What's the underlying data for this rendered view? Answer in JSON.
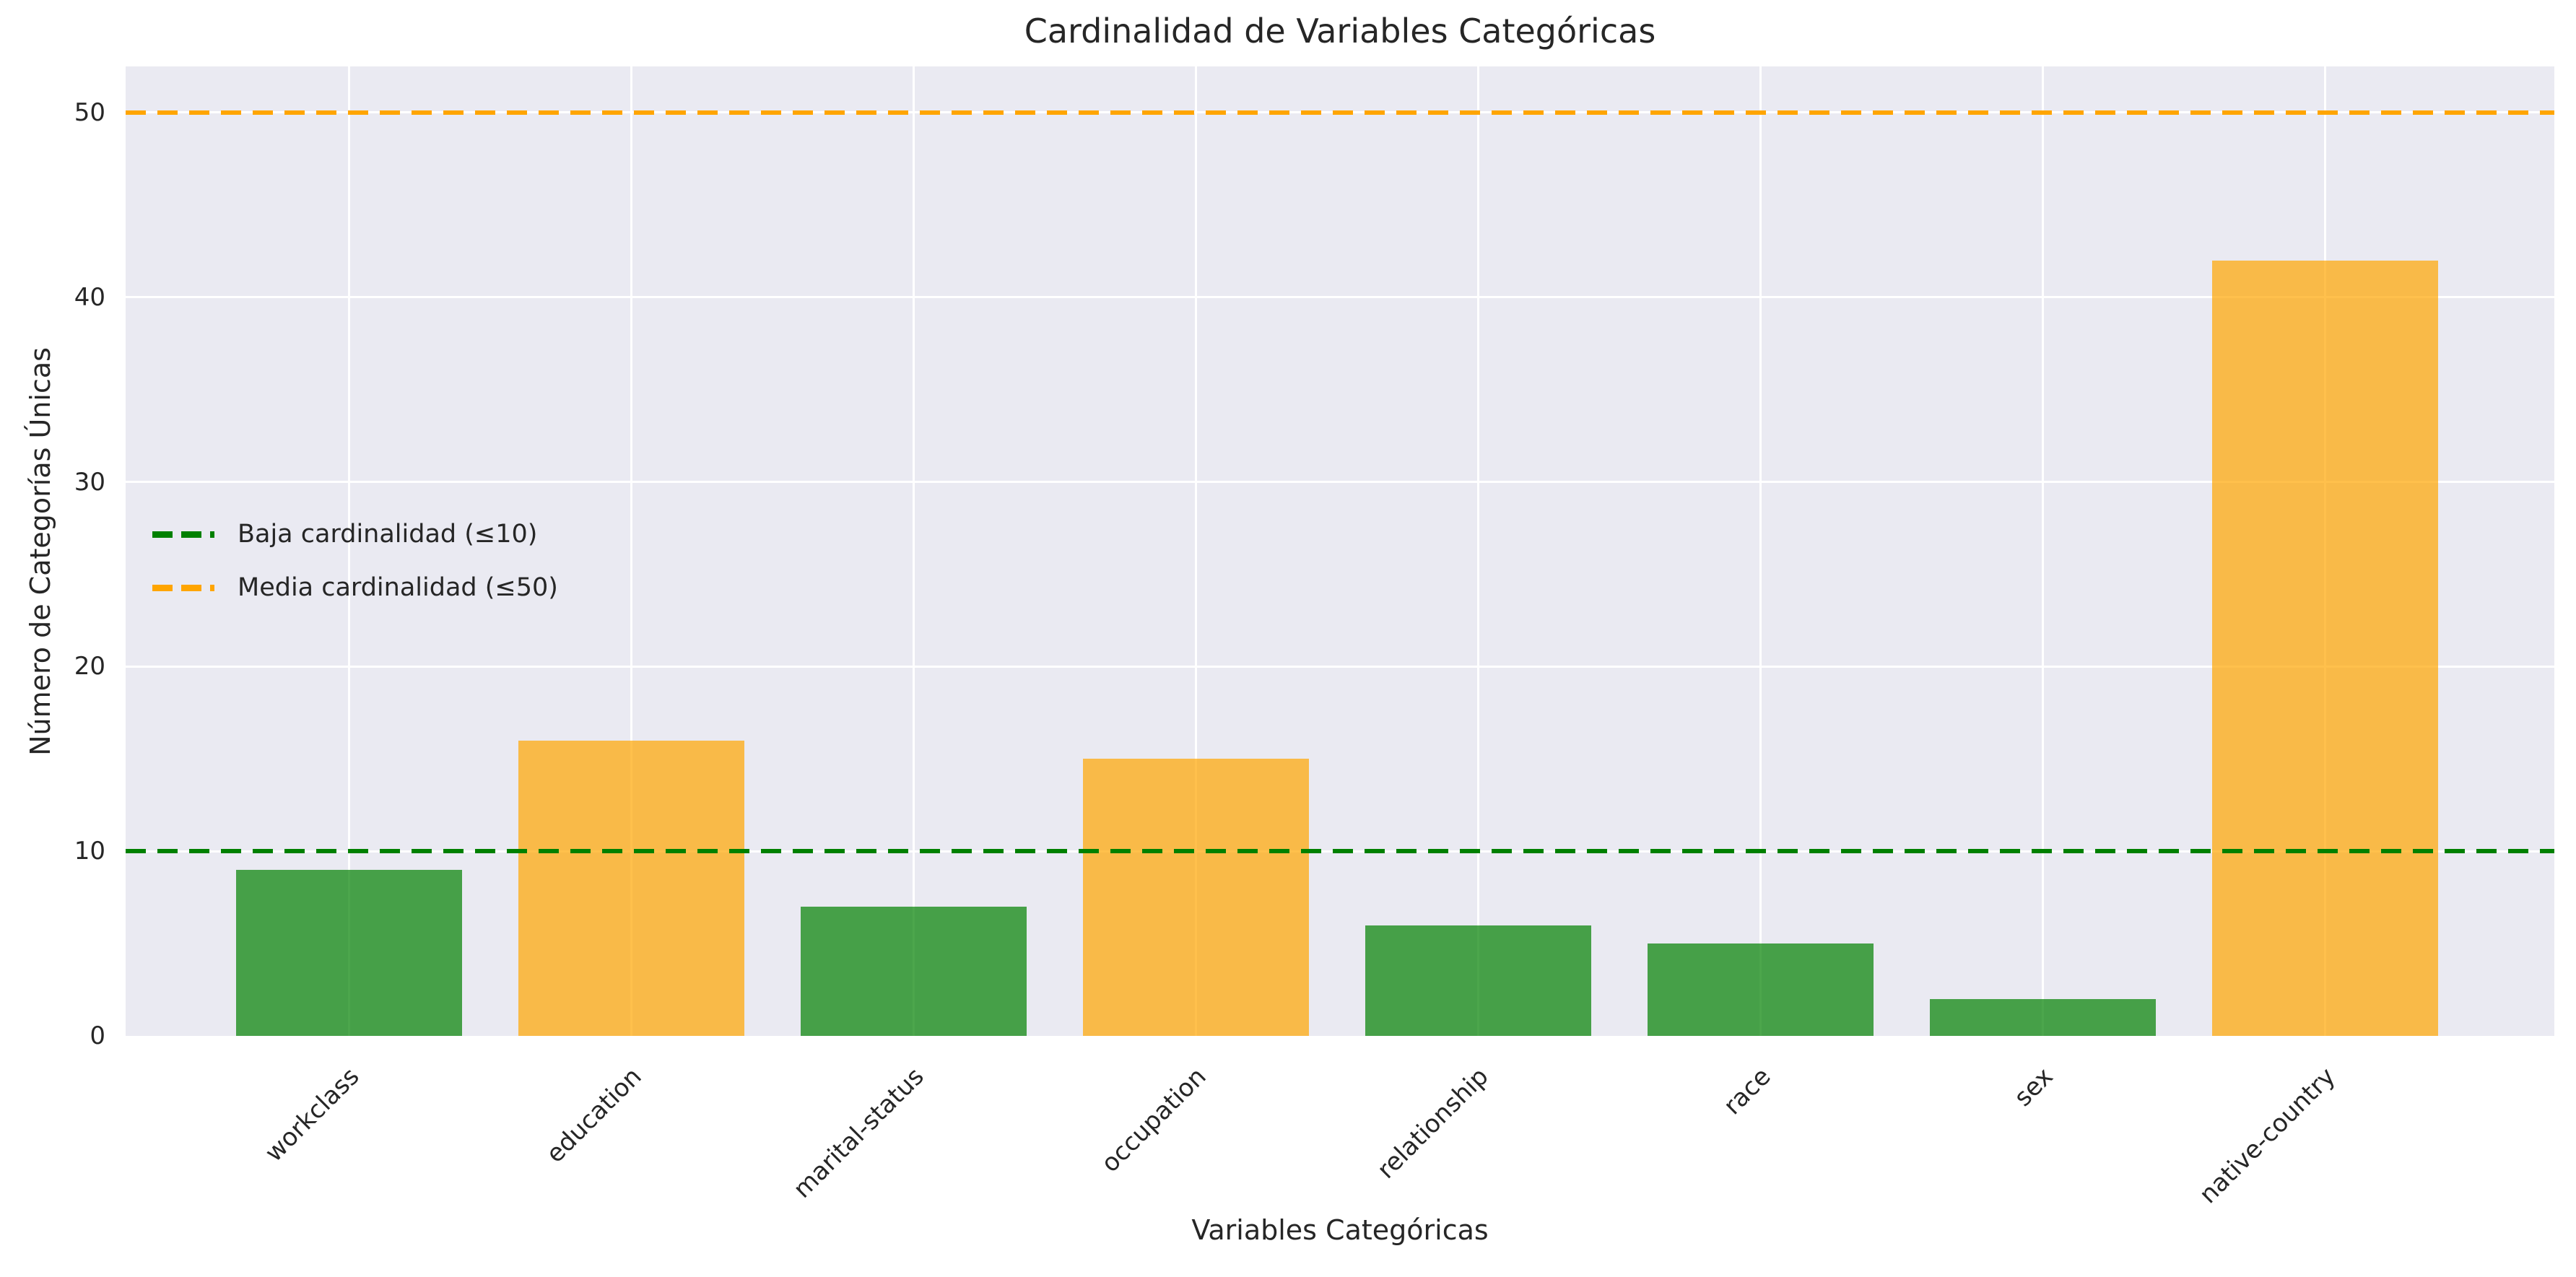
{
  "chart_data": {
    "type": "bar",
    "title": "Cardinalidad de Variables Categóricas",
    "xlabel": "Variables Categóricas",
    "ylabel": "Número de Categorías Únicas",
    "categories": [
      "workclass",
      "education",
      "marital-status",
      "occupation",
      "relationship",
      "race",
      "sex",
      "native-country"
    ],
    "values": [
      9,
      16,
      7,
      15,
      6,
      5,
      2,
      42
    ],
    "yticks": [
      0,
      10,
      20,
      30,
      40,
      50
    ],
    "ylim": [
      0,
      52.5
    ],
    "grid": true,
    "legend_position": "center left",
    "bar_color_rule": {
      "threshold": 10,
      "low_color": "rgba(0,128,0,0.7)",
      "high_color": "rgba(255,165,0,0.7)"
    },
    "reference_lines": [
      {
        "label": "Baja cardinalidad (≤10)",
        "value": 10,
        "color": "#008000",
        "style": "dashed"
      },
      {
        "label": "Media cardinalidad (≤50)",
        "value": 50,
        "color": "#ffa500",
        "style": "dashed"
      }
    ]
  },
  "colors": {
    "figure_bg": "#ffffff",
    "axes_bg": "#eaeaf2",
    "grid": "#ffffff",
    "text": "#262626"
  }
}
